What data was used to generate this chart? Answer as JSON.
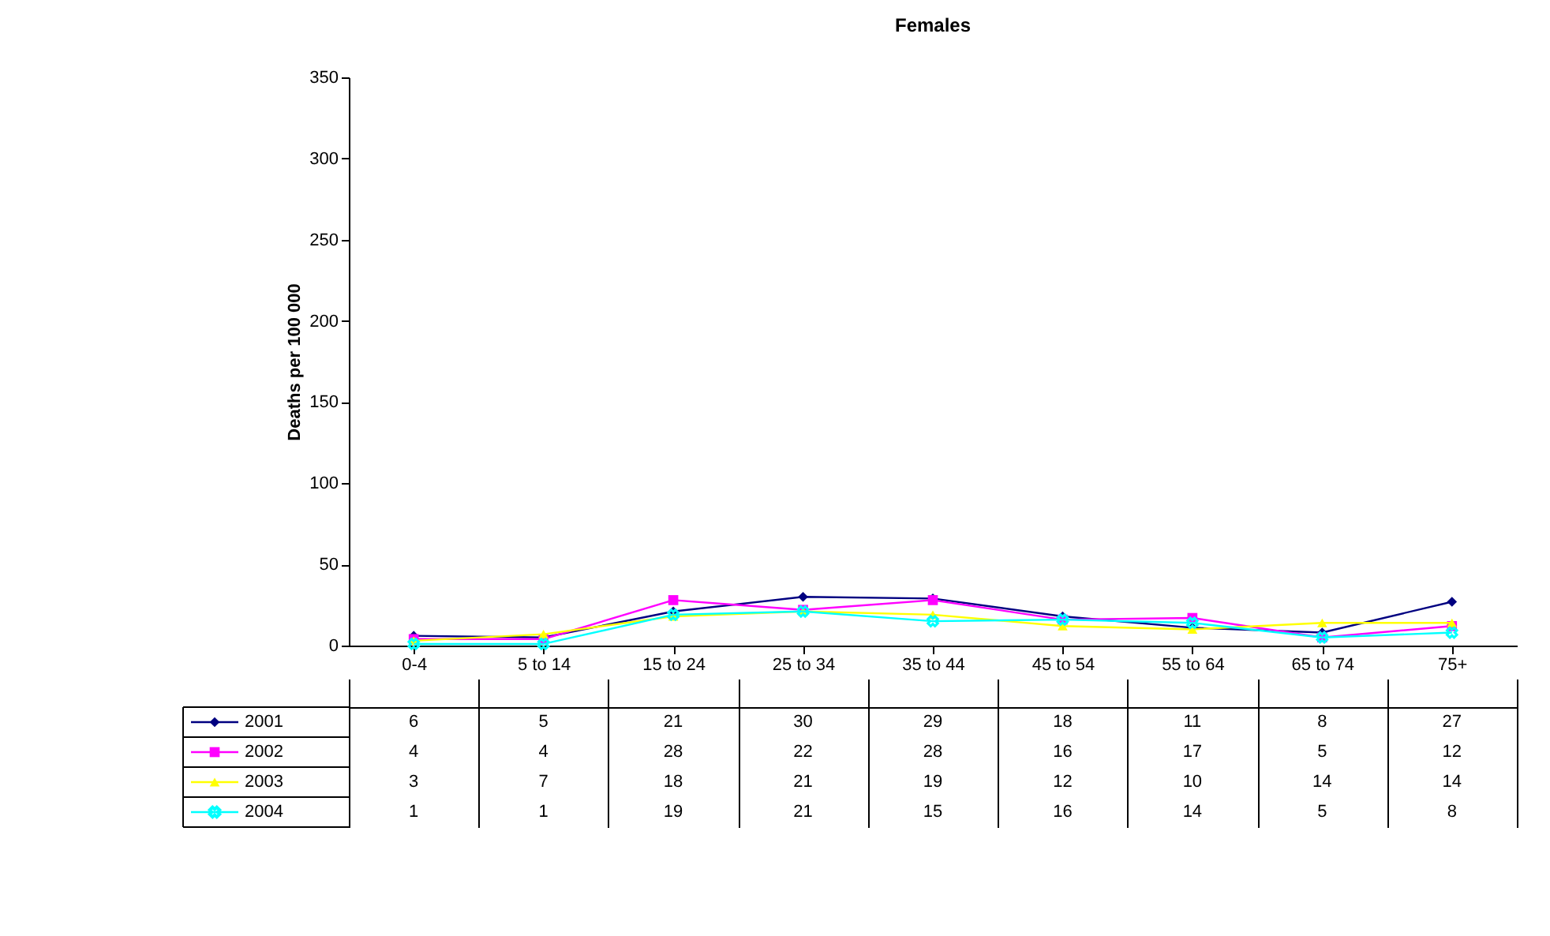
{
  "chart_data": {
    "type": "line",
    "title": "Females",
    "ylabel": "Deaths per 100 000",
    "categories": [
      "0-4",
      "5 to   14",
      "15 to 24",
      "25 to 34",
      "35 to 44",
      "45 to 54",
      "55 to 64",
      "65 to 74",
      "75+"
    ],
    "series": [
      {
        "name": "2001",
        "color": "#000080",
        "marker": "diamond",
        "values": [
          6,
          5,
          21,
          30,
          29,
          18,
          11,
          8,
          27
        ]
      },
      {
        "name": "2002",
        "color": "#ff00ff",
        "marker": "square",
        "values": [
          4,
          4,
          28,
          22,
          28,
          16,
          17,
          5,
          12
        ]
      },
      {
        "name": "2003",
        "color": "#ffff00",
        "marker": "triangle",
        "values": [
          3,
          7,
          18,
          21,
          19,
          12,
          10,
          14,
          14
        ]
      },
      {
        "name": "2004",
        "color": "#00ffff",
        "marker": "cross",
        "values": [
          1,
          1,
          19,
          21,
          15,
          16,
          14,
          5,
          8
        ]
      }
    ],
    "ylim": [
      0,
      350
    ],
    "yticks": [
      0,
      50,
      100,
      150,
      200,
      250,
      300,
      350
    ],
    "grid": false,
    "data_labels": true,
    "legend": "bottom left"
  }
}
